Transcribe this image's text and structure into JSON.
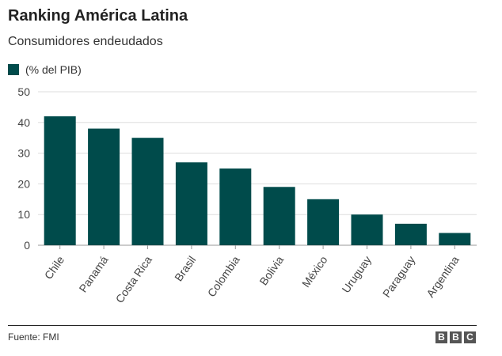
{
  "header": {
    "title": "Ranking América Latina",
    "subtitle": "Consumidores endeudados"
  },
  "legend": {
    "label": "(% del PIB)",
    "color": "#004b4b"
  },
  "footer": {
    "source": "Fuente: FMI",
    "brand_letters": [
      "B",
      "B",
      "C"
    ]
  },
  "chart_data": {
    "type": "bar",
    "categories": [
      "Chile",
      "Panamá",
      "Costa Rica",
      "Brasil",
      "Colombia",
      "Bolivia",
      "México",
      "Uruguay",
      "Paraguay",
      "Argentina"
    ],
    "series": [
      {
        "name": "(% del PIB)",
        "values": [
          42,
          38,
          35,
          27,
          25,
          19,
          15,
          10,
          7,
          4
        ]
      }
    ],
    "ylim": [
      0,
      50
    ],
    "yticks": [
      0,
      10,
      20,
      30,
      40,
      50
    ],
    "grid": true,
    "bar_color": "#004b4b",
    "legend_position": "top-left"
  }
}
